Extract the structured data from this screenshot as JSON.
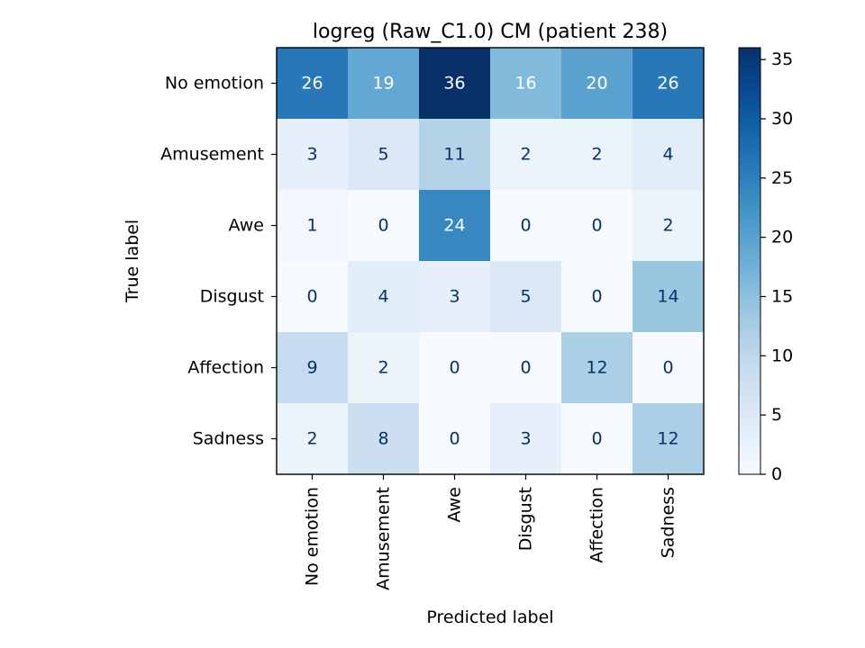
{
  "chart_data": {
    "type": "heatmap",
    "title": "logreg (Raw_C1.0) CM (patient 238)",
    "xlabel": "Predicted label",
    "ylabel": "True label",
    "row_labels": [
      "No emotion",
      "Amusement",
      "Awe",
      "Disgust",
      "Affection",
      "Sadness"
    ],
    "col_labels": [
      "No emotion",
      "Amusement",
      "Awe",
      "Disgust",
      "Affection",
      "Sadness"
    ],
    "values": [
      [
        26,
        19,
        36,
        16,
        20,
        26
      ],
      [
        3,
        5,
        11,
        2,
        2,
        4
      ],
      [
        1,
        0,
        24,
        0,
        0,
        2
      ],
      [
        0,
        4,
        3,
        5,
        0,
        14
      ],
      [
        9,
        2,
        0,
        0,
        12,
        0
      ],
      [
        2,
        8,
        0,
        3,
        0,
        12
      ]
    ],
    "colorbar": {
      "min": 0,
      "max": 36,
      "ticks": [
        0,
        5,
        10,
        15,
        20,
        25,
        30,
        35
      ]
    },
    "colormap": "Blues",
    "colors": {
      "text_dark": "#08306b",
      "text_light": "#ffffff"
    }
  }
}
